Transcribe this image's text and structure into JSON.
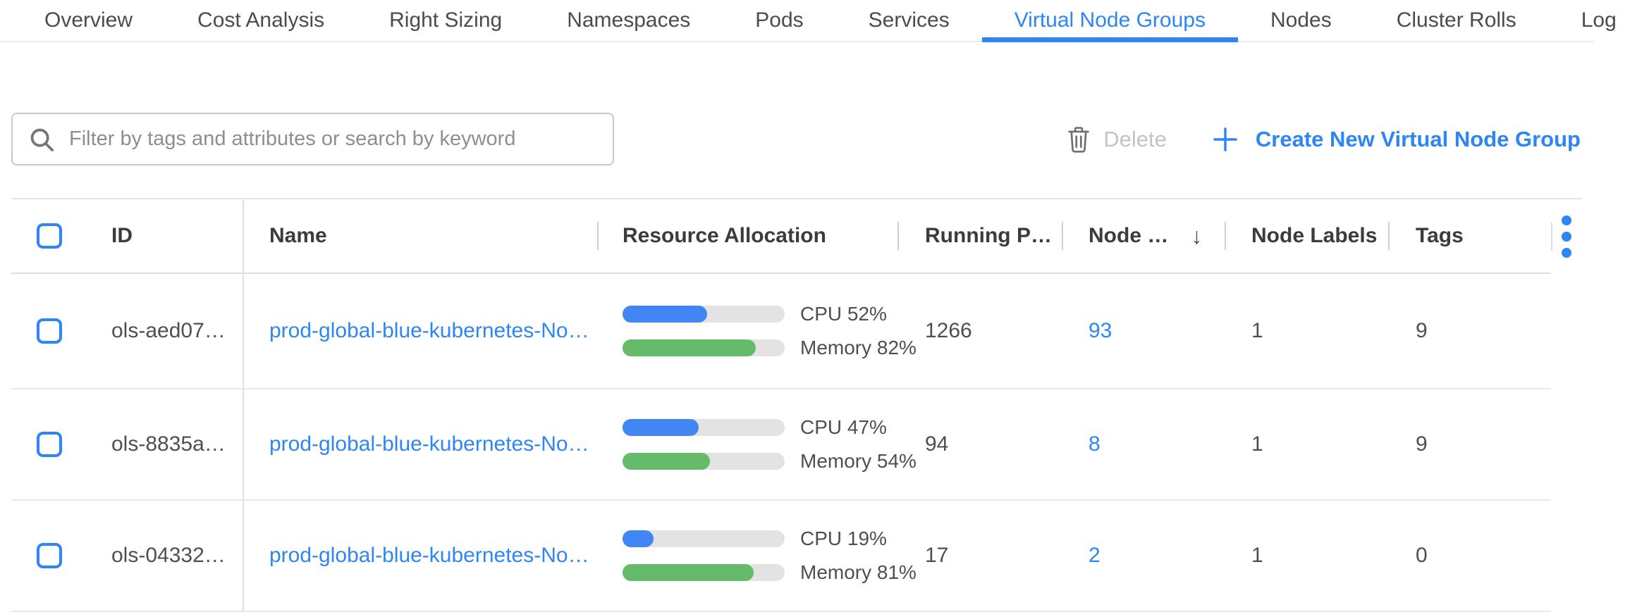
{
  "colors": {
    "accent": "#2d86f3",
    "cpu_bar": "#4285f4",
    "memory_bar": "#66bb6a",
    "bar_track": "#e3e3e3",
    "disabled_text": "#c3c3c3"
  },
  "tabs": {
    "items": [
      {
        "label": "Overview",
        "active": false
      },
      {
        "label": "Cost Analysis",
        "active": false
      },
      {
        "label": "Right Sizing",
        "active": false
      },
      {
        "label": "Namespaces",
        "active": false
      },
      {
        "label": "Pods",
        "active": false
      },
      {
        "label": "Services",
        "active": false
      },
      {
        "label": "Virtual Node Groups",
        "active": true
      },
      {
        "label": "Nodes",
        "active": false
      },
      {
        "label": "Cluster Rolls",
        "active": false
      },
      {
        "label": "Log",
        "active": false
      }
    ]
  },
  "toolbar": {
    "filter_placeholder": "Filter by tags and attributes or search by keyword",
    "delete_label": "Delete",
    "create_plus": "+",
    "create_label": "Create New Virtual Node Group"
  },
  "table": {
    "columns": {
      "id": "ID",
      "name": "Name",
      "resource_allocation": "Resource Allocation",
      "running_pods": "Running P…",
      "nodes": "Node …",
      "node_labels": "Node Labels",
      "tags": "Tags"
    },
    "sort_arrow": "↓",
    "rows": [
      {
        "id": "ols-aed07…",
        "name": "prod-global-blue-kubernetes-No…",
        "cpu_pct": 52,
        "cpu_label": "CPU 52%",
        "memory_pct": 82,
        "memory_label": "Memory 82%",
        "running_pods": "1266",
        "nodes": "93",
        "node_labels": "1",
        "tags": "9"
      },
      {
        "id": "ols-8835a…",
        "name": "prod-global-blue-kubernetes-No…",
        "cpu_pct": 47,
        "cpu_label": "CPU 47%",
        "memory_pct": 54,
        "memory_label": "Memory 54%",
        "running_pods": "94",
        "nodes": "8",
        "node_labels": "1",
        "tags": "9"
      },
      {
        "id": "ols-04332…",
        "name": "prod-global-blue-kubernetes-No…",
        "cpu_pct": 19,
        "cpu_label": "CPU 19%",
        "memory_pct": 81,
        "memory_label": "Memory 81%",
        "running_pods": "17",
        "nodes": "2",
        "node_labels": "1",
        "tags": "0"
      }
    ]
  }
}
